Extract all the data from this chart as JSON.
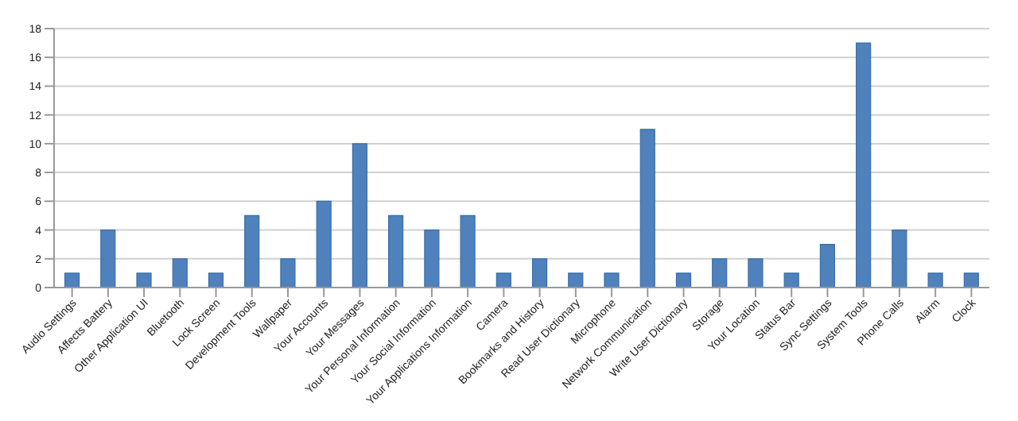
{
  "chart_data": {
    "type": "bar",
    "categories": [
      "Audio Settings",
      "Affects Battery",
      "Other Application UI",
      "Bluetooth",
      "Lock Screen",
      "Development Tools",
      "Wallpaper",
      "Your Accounts",
      "Your Messages",
      "Your Personal Information",
      "Your Social Information",
      "Your Applications Information",
      "Camera",
      "Bookmarks and History",
      "Read User Dictionary",
      "Microphone",
      "Network Communication",
      "Write User Dictionary",
      "Storage",
      "Your Location",
      "Status Bar",
      "Sync Settings",
      "System Tools",
      "Phone Calls",
      "Alarm",
      "Clock"
    ],
    "values": [
      1,
      4,
      1,
      2,
      1,
      5,
      2,
      6,
      10,
      5,
      4,
      5,
      1,
      2,
      1,
      1,
      11,
      1,
      2,
      2,
      1,
      3,
      17,
      4,
      1,
      1
    ],
    "color": "#4f81bd",
    "ylim": [
      0,
      18
    ],
    "yticks": [
      0,
      2,
      4,
      6,
      8,
      10,
      12,
      14,
      16,
      18
    ],
    "grid": "y"
  }
}
